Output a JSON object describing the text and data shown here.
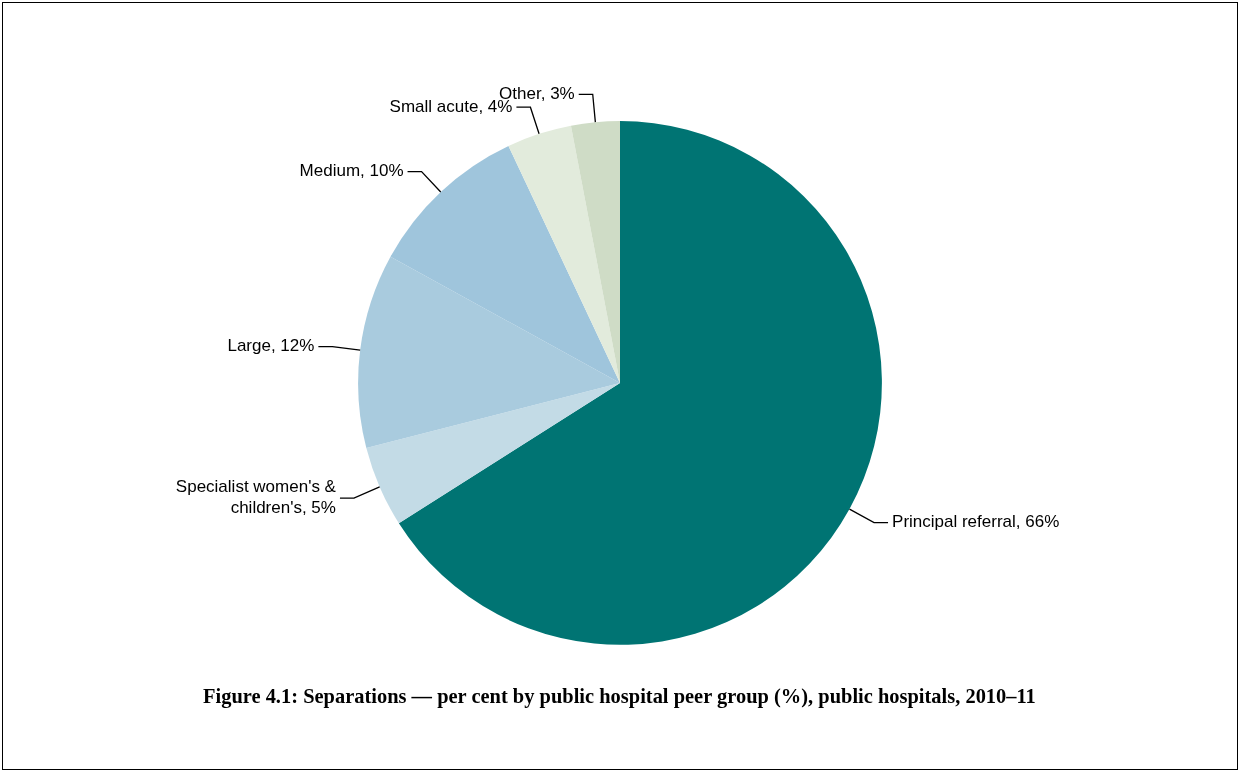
{
  "chart_data": {
    "type": "pie",
    "title": "Figure 4.1: Separations — per cent by public hospital peer group (%), public hospitals, 2010–11",
    "categories": [
      "Principal referral",
      "Specialist women's & children's",
      "Large",
      "Medium",
      "Small acute",
      "Other"
    ],
    "values": [
      66,
      5,
      12,
      10,
      4,
      3
    ],
    "value_labels": [
      "66%",
      "5%",
      "12%",
      "10%",
      "4%",
      "3%"
    ],
    "colors": [
      "#007473",
      "#c3dbe6",
      "#a9cbde",
      "#9fc5dc",
      "#e2ebdc",
      "#cfdcc6"
    ],
    "legend": false
  }
}
